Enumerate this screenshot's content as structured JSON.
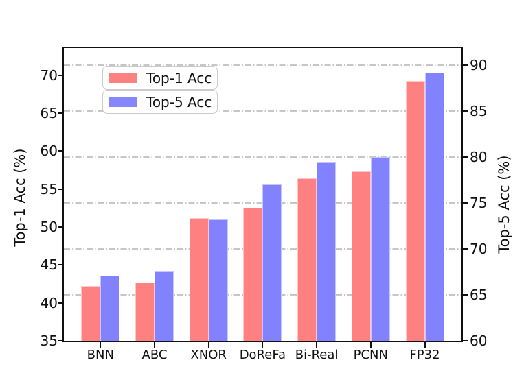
{
  "chart_data": {
    "type": "bar",
    "categories": [
      "BNN",
      "ABC",
      "XNOR",
      "DoReFa",
      "Bi-Real",
      "PCNN",
      "FP32"
    ],
    "series": [
      {
        "name": "Top-1 Acc",
        "axis": "left",
        "color": "#ff8080",
        "values": [
          42.2,
          42.7,
          51.2,
          52.5,
          56.4,
          57.3,
          69.3
        ]
      },
      {
        "name": "Top-5 Acc",
        "axis": "right",
        "color": "#8282ff",
        "values": [
          67.1,
          67.6,
          73.2,
          77.0,
          79.5,
          80.0,
          89.2
        ]
      }
    ],
    "left_axis": {
      "label": "Top-1 Acc (%)",
      "ticks": [
        35,
        40,
        45,
        50,
        55,
        60,
        65,
        70
      ],
      "range": [
        35,
        73.6
      ]
    },
    "right_axis": {
      "label": "Top-5 Acc (%)",
      "ticks": [
        60,
        65,
        70,
        75,
        80,
        85,
        90
      ],
      "range": [
        60,
        91.9
      ]
    },
    "grid": {
      "on": true,
      "style": "dash-dot",
      "color": "#bcbcbc",
      "at_right_axis_values": [
        65,
        70,
        75,
        80,
        85,
        90
      ]
    },
    "legend": {
      "position": "upper-left",
      "entries": [
        "Top-1 Acc",
        "Top-5 Acc"
      ]
    },
    "title": "",
    "xlabel": ""
  }
}
